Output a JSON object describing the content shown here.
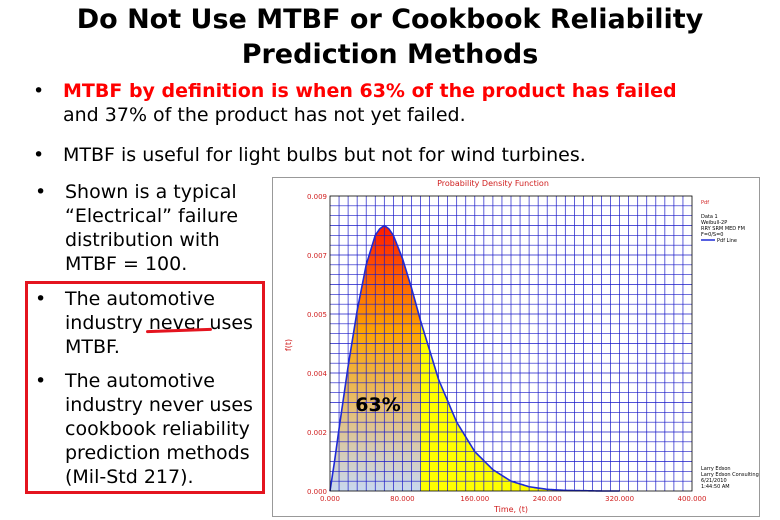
{
  "slide": {
    "title_line1": "Do Not Use MTBF or Cookbook Reliability",
    "title_line2": "Prediction Methods",
    "bullet1_red": "MTBF by definition is when 63% of the product has failed",
    "bullet1_rest": "and 37% of the product has not yet failed.",
    "bullet2": "MTBF is useful for light bulbs but not for wind turbines.",
    "bullet3_lines": [
      "Shown is a typical",
      "“Electrical” failure",
      "distribution with",
      "MTBF = 100."
    ],
    "bullet4_line1_a": "The automotive",
    "bullet4_line2_a": "industry ",
    "bullet4_line2_b": "never",
    "bullet4_line2_c": " uses",
    "bullet4_line3": "MTBF.",
    "bullet5_lines": [
      "The automotive",
      "industry never uses",
      "cookbook reliability",
      "prediction methods",
      "(Mil-Std 217)."
    ],
    "bullet_glyph": "•"
  },
  "chart": {
    "title": "Probability Density Function",
    "ylabel": "f(t)",
    "xlabel": "Time, (t)",
    "x_ticks": [
      "0.000",
      "80.000",
      "160.000",
      "240.000",
      "320.000",
      "400.000"
    ],
    "y_ticks": [
      "0.000",
      "0.002",
      "0.004",
      "0.005",
      "0.007",
      "0.009"
    ],
    "annotation": "63%",
    "legend_title": "Pdf",
    "legend_lines": [
      "Data 1",
      "Weibull-2P",
      "RRY SRM MED FM",
      "F=0/S=0"
    ],
    "legend_series": "Pdf Line",
    "footer_lines": [
      "Larry Edson",
      "Larry Edson Consulting",
      "6/21/2010",
      "1:44:50 AM"
    ],
    "colors": {
      "curve": "#1e2ad6",
      "grid": "#1a1ac8",
      "fill_tail": "#ffff00",
      "fill_top": "#ff1a00",
      "fill_mid": "#ffa500",
      "fill_bottom": "#c8d8f0",
      "title": "#d02020"
    }
  },
  "chart_data": {
    "type": "area",
    "title": "Probability Density Function",
    "xlabel": "Time, (t)",
    "ylabel": "f(t)",
    "xlim": [
      0,
      400
    ],
    "ylim": [
      0,
      0.009
    ],
    "series": [
      {
        "name": "Pdf Line",
        "x": [
          0,
          5,
          10,
          20,
          30,
          40,
          50,
          55,
          60,
          65,
          70,
          80,
          90,
          100,
          110,
          120,
          140,
          160,
          180,
          200,
          220,
          240,
          260,
          280,
          300
        ],
        "values": [
          0,
          0.0009,
          0.0019,
          0.0038,
          0.0055,
          0.0069,
          0.0078,
          0.008,
          0.0081,
          0.008,
          0.0078,
          0.0071,
          0.0062,
          0.0052,
          0.0043,
          0.0034,
          0.0021,
          0.0012,
          0.00065,
          0.0003,
          0.00013,
          5e-05,
          2e-05,
          1e-05,
          0
        ]
      }
    ],
    "shaded_regions": [
      {
        "label": "63%",
        "x_from": 0,
        "x_to": 100,
        "style": "gradient"
      },
      {
        "x_from": 100,
        "x_to": 300,
        "style": "yellow"
      }
    ],
    "grid": true
  }
}
